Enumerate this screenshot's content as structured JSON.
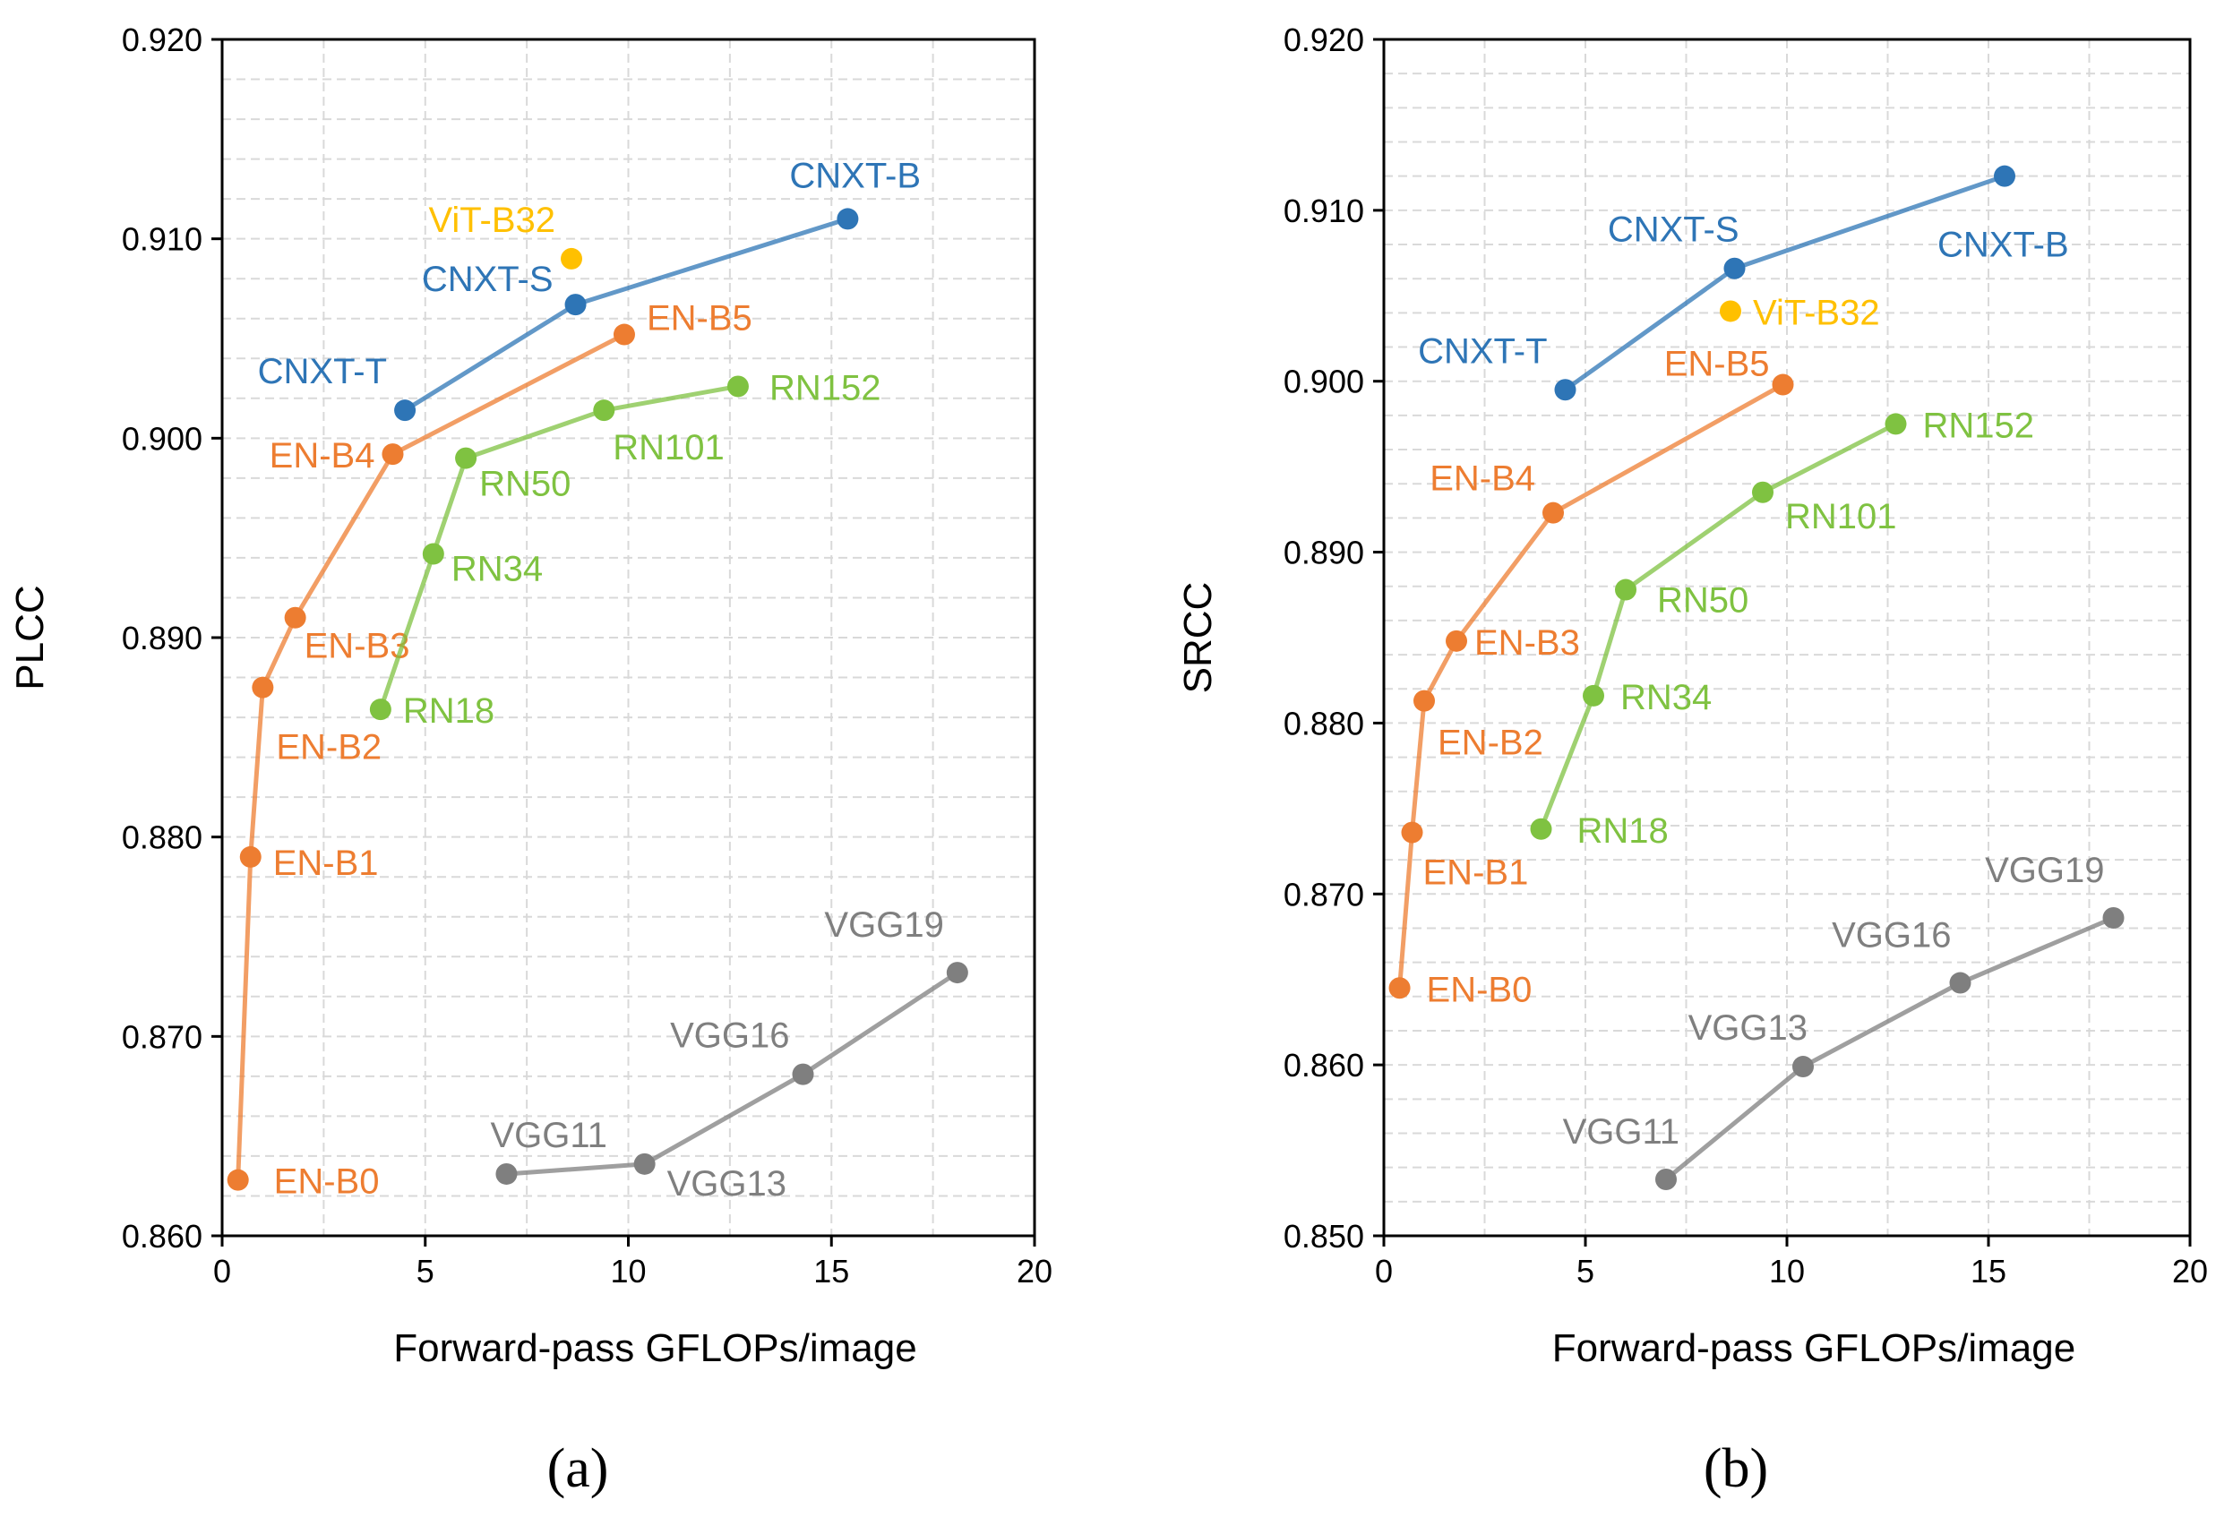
{
  "colors": {
    "CNXT": "#2e75b6",
    "ViT": "#ffc000",
    "EN": "#ed7d31",
    "RN": "#7fc241",
    "VGG": "#7f7f7f"
  },
  "chart_data": [
    {
      "type": "line",
      "caption": "(a)",
      "xlabel": "Forward-pass GFLOPs/image",
      "ylabel": "PLCC",
      "xlim": [
        0,
        20
      ],
      "ylim": [
        0.86,
        0.92
      ],
      "x_ticks": [
        "0",
        "5",
        "10",
        "15",
        "20"
      ],
      "y_ticks": [
        "0.860",
        "0.870",
        "0.880",
        "0.890",
        "0.900",
        "0.910",
        "0.920"
      ],
      "grid": true,
      "series": [
        {
          "family": "CNXT",
          "labels": [
            "CNXT-T",
            "CNXT-S",
            "CNXT-B"
          ],
          "x": [
            4.5,
            8.7,
            15.4
          ],
          "y": [
            0.9014,
            0.9067,
            0.911
          ]
        },
        {
          "family": "ViT",
          "labels": [
            "ViT-B32"
          ],
          "x": [
            8.6
          ],
          "y": [
            0.909
          ]
        },
        {
          "family": "EN",
          "labels": [
            "EN-B0",
            "EN-B1",
            "EN-B2",
            "EN-B3",
            "EN-B4",
            "EN-B5"
          ],
          "x": [
            0.39,
            0.7,
            1.0,
            1.8,
            4.2,
            9.9
          ],
          "y": [
            0.8628,
            0.879,
            0.8875,
            0.891,
            0.8992,
            0.9052
          ]
        },
        {
          "family": "RN",
          "labels": [
            "RN18",
            "RN34",
            "RN50",
            "RN101",
            "RN152"
          ],
          "x": [
            3.9,
            5.2,
            6.0,
            9.4,
            12.7
          ],
          "y": [
            0.8864,
            0.8942,
            0.899,
            0.9014,
            0.9026
          ]
        },
        {
          "family": "VGG",
          "labels": [
            "VGG11",
            "VGG13",
            "VGG16",
            "VGG19"
          ],
          "x": [
            7.0,
            10.4,
            14.3,
            18.1
          ],
          "y": [
            0.8631,
            0.8636,
            0.8681,
            0.8732
          ]
        }
      ]
    },
    {
      "type": "line",
      "caption": "(b)",
      "xlabel": "Forward-pass GFLOPs/image",
      "ylabel": "SRCC",
      "xlim": [
        0,
        20
      ],
      "ylim": [
        0.85,
        0.92
      ],
      "x_ticks": [
        "0",
        "5",
        "10",
        "15",
        "20"
      ],
      "y_ticks": [
        "0.850",
        "0.860",
        "0.870",
        "0.880",
        "0.890",
        "0.900",
        "0.910",
        "0.920"
      ],
      "grid": true,
      "series": [
        {
          "family": "CNXT",
          "labels": [
            "CNXT-T",
            "CNXT-S",
            "CNXT-B"
          ],
          "x": [
            4.5,
            8.7,
            15.4
          ],
          "y": [
            0.8995,
            0.9066,
            0.912
          ]
        },
        {
          "family": "ViT",
          "labels": [
            "ViT-B32"
          ],
          "x": [
            8.6
          ],
          "y": [
            0.9041
          ]
        },
        {
          "family": "EN",
          "labels": [
            "EN-B0",
            "EN-B1",
            "EN-B2",
            "EN-B3",
            "EN-B4",
            "EN-B5"
          ],
          "x": [
            0.39,
            0.7,
            1.0,
            1.8,
            4.2,
            9.9
          ],
          "y": [
            0.8645,
            0.8736,
            0.8813,
            0.8848,
            0.8923,
            0.8998
          ]
        },
        {
          "family": "RN",
          "labels": [
            "RN18",
            "RN34",
            "RN50",
            "RN101",
            "RN152"
          ],
          "x": [
            3.9,
            5.2,
            6.0,
            9.4,
            12.7
          ],
          "y": [
            0.8738,
            0.8816,
            0.8878,
            0.8935,
            0.8975
          ]
        },
        {
          "family": "VGG",
          "labels": [
            "VGG11",
            "VGG13",
            "VGG16",
            "VGG19"
          ],
          "x": [
            7.0,
            10.4,
            14.3,
            18.1
          ],
          "y": [
            0.8533,
            0.8599,
            0.8648,
            0.8686
          ]
        }
      ]
    }
  ]
}
